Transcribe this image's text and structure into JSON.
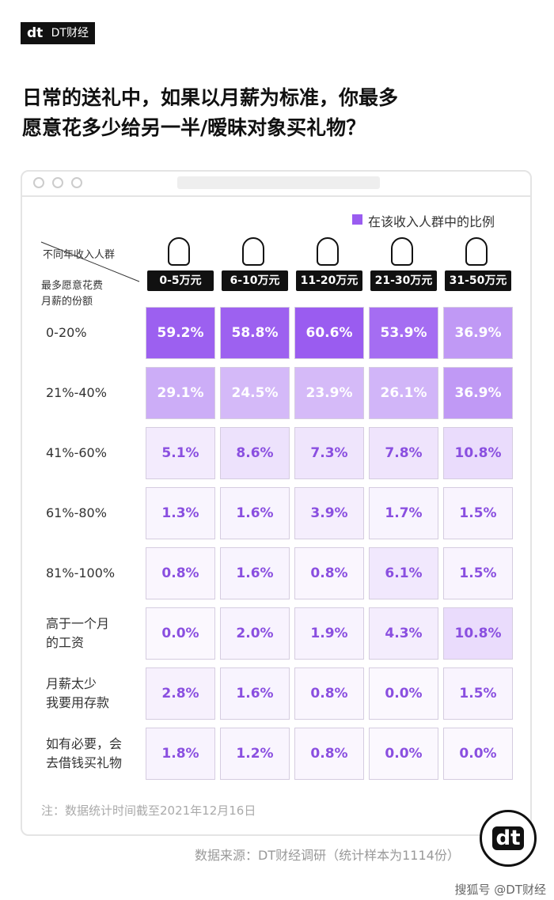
{
  "brand": "DT财经",
  "chart_data": {
    "type": "heatmap",
    "title": [
      "日常的送礼中，如果以月薪为标准，你最多",
      "愿意花多少给另一半/暧昧对象买礼物？"
    ],
    "legend": "在该收入人群中的比例",
    "color": "#9a5cf0",
    "column_header": "不同年收入人群",
    "row_header": "最多愿意花费\n月薪的份额",
    "categories": [
      "0-20%",
      "21%-40%",
      "41%-60%",
      "61%-80%",
      "81%-100%",
      "高于一个月\n的工资",
      "月薪太少\n我要用存款",
      "如有必要，会\n去借钱买礼物"
    ],
    "series": [
      {
        "name": "0-5万元",
        "values": [
          59.2,
          29.1,
          5.1,
          1.3,
          0.8,
          0.0,
          2.8,
          1.8
        ],
        "value_labels": [
          "59.2%",
          "29.1%",
          "5.1%",
          "1.3%",
          "0.8%",
          "0.0%",
          "2.8%",
          "1.8%"
        ]
      },
      {
        "name": "6-10万元",
        "values": [
          58.8,
          24.5,
          8.6,
          1.6,
          1.6,
          2.0,
          1.6,
          1.2
        ],
        "value_labels": [
          "58.8%",
          "24.5%",
          "8.6%",
          "1.6%",
          "1.6%",
          "2.0%",
          "1.6%",
          "1.2%"
        ]
      },
      {
        "name": "11-20万元",
        "values": [
          60.6,
          23.9,
          7.3,
          3.9,
          0.8,
          1.9,
          0.8,
          0.8
        ],
        "value_labels": [
          "60.6%",
          "23.9%",
          "7.3%",
          "3.9%",
          "0.8%",
          "1.9%",
          "0.8%",
          "0.8%"
        ]
      },
      {
        "name": "21-30万元",
        "values": [
          53.9,
          26.1,
          7.8,
          1.7,
          6.1,
          4.3,
          0.0,
          0.0
        ],
        "value_labels": [
          "53.9%",
          "26.1%",
          "7.8%",
          "1.7%",
          "6.1%",
          "4.3%",
          "0.0%",
          "0.0%"
        ]
      },
      {
        "name": "31-50万元",
        "values": [
          36.9,
          36.9,
          10.8,
          1.5,
          1.5,
          10.8,
          1.5,
          0.0
        ],
        "value_labels": [
          "36.9%",
          "36.9%",
          "10.8%",
          "1.5%",
          "1.5%",
          "10.8%",
          "1.5%",
          "0.0%"
        ]
      }
    ]
  },
  "note": "注：数据统计时间截至2021年12月16日",
  "source": "数据来源：DT财经调研（统计样本为1114份）",
  "footer": "搜狐号 @DT财经"
}
